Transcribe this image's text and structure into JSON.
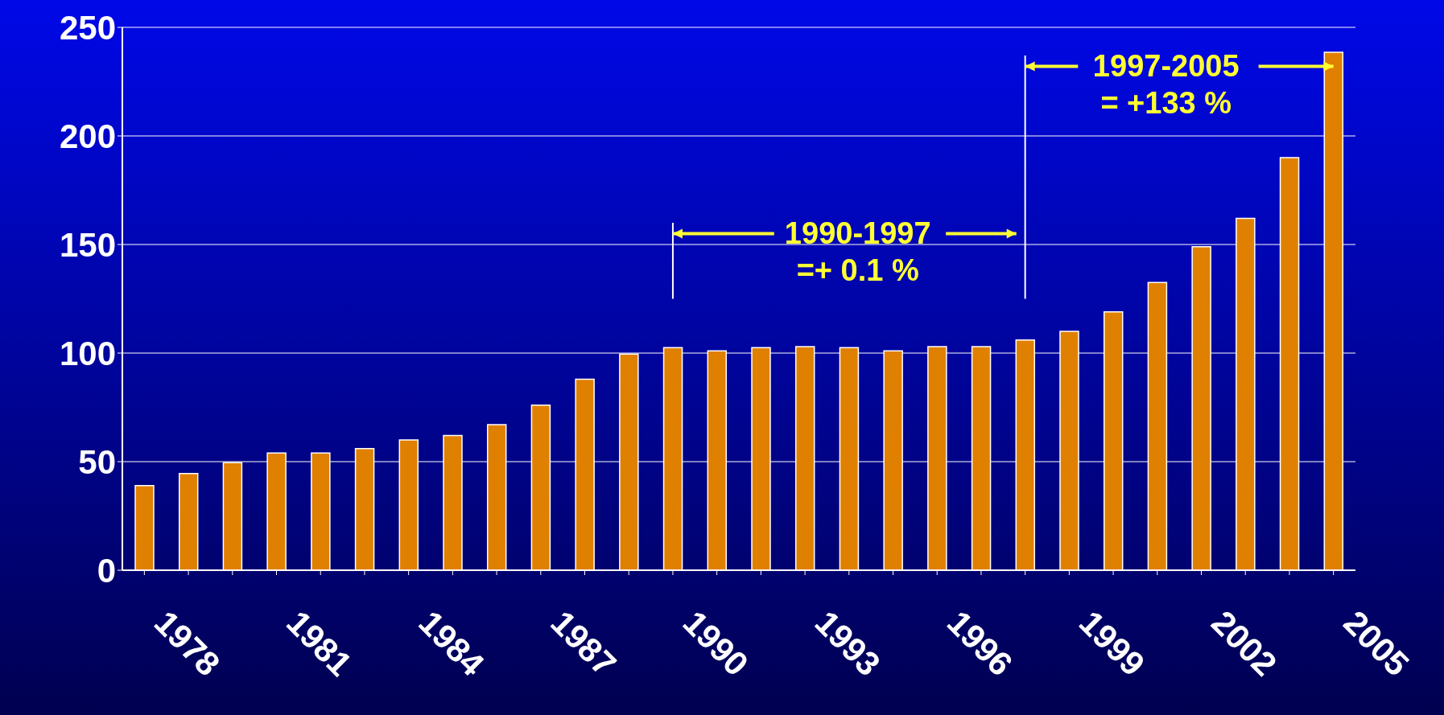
{
  "chart_data": {
    "type": "bar",
    "categories": [
      "1978",
      null,
      null,
      "1981",
      null,
      null,
      "1984",
      null,
      null,
      "1987",
      null,
      null,
      "1990",
      null,
      null,
      "1993",
      null,
      null,
      "1996",
      null,
      null,
      "1999",
      null,
      null,
      "2002",
      null,
      null,
      "2005"
    ],
    "values": [
      39,
      44.5,
      49.5,
      54,
      54,
      56,
      60,
      62,
      67,
      76,
      88,
      99.5,
      102.5,
      101,
      102.5,
      103,
      102.5,
      101,
      103,
      103,
      106,
      110,
      119,
      132.5,
      149,
      162,
      190,
      238.5
    ],
    "color": "#e08000",
    "ylim": [
      0,
      250
    ],
    "yticks": [
      0,
      50,
      100,
      150,
      200,
      250
    ],
    "grid": "y",
    "annotations": [
      "1990-1997\n=+ 0.1 %",
      "1997-2005\n= +133 %"
    ]
  }
}
